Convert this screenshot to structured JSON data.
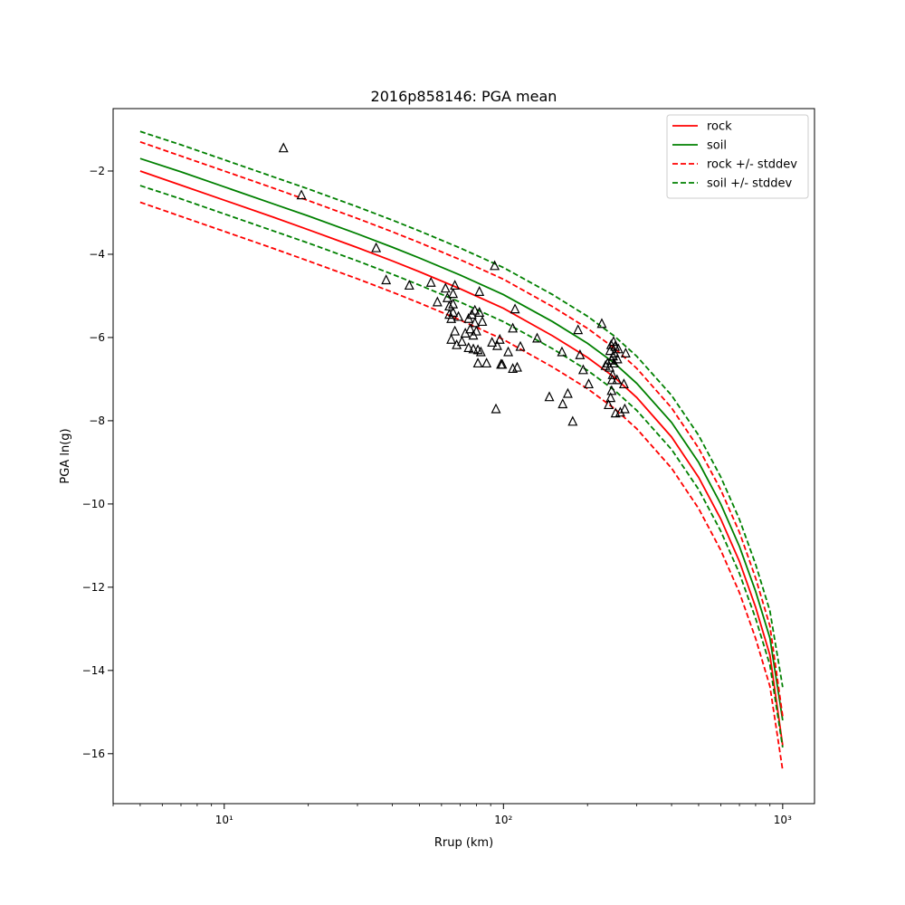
{
  "chart_data": {
    "type": "line",
    "title": "2016p858146: PGA mean",
    "xlabel": "Rrup (km)",
    "ylabel": "PGA ln(g)",
    "xscale": "log",
    "xlim": [
      4,
      1300
    ],
    "ylim": [
      -17.2,
      -0.5
    ],
    "xticks": [
      10,
      100,
      1000
    ],
    "xtick_labels": [
      "10¹",
      "10²",
      "10³"
    ],
    "yticks": [
      -2,
      -4,
      -6,
      -8,
      -10,
      -12,
      -14,
      -16
    ],
    "ytick_labels": [
      "−2",
      "−4",
      "−6",
      "−8",
      "−10",
      "−12",
      "−14",
      "−16"
    ],
    "grid": false,
    "legend_position": "top-right",
    "curve_x": [
      5,
      7,
      10,
      15,
      20,
      30,
      40,
      50,
      70,
      100,
      150,
      200,
      250,
      300,
      400,
      500,
      600,
      700,
      800,
      900,
      1000
    ],
    "series": [
      {
        "name": "rock",
        "color": "#ff0000",
        "style": "solid",
        "values": [
          -2.0,
          -2.34,
          -2.7,
          -3.11,
          -3.41,
          -3.84,
          -4.16,
          -4.42,
          -4.83,
          -5.3,
          -5.96,
          -6.48,
          -6.96,
          -7.44,
          -8.39,
          -9.36,
          -10.36,
          -11.38,
          -12.48,
          -13.63,
          -15.8
        ]
      },
      {
        "name": "soil",
        "color": "#008000",
        "style": "solid",
        "values": [
          -1.7,
          -2.02,
          -2.38,
          -2.79,
          -3.08,
          -3.51,
          -3.83,
          -4.09,
          -4.5,
          -4.97,
          -5.62,
          -6.14,
          -6.62,
          -7.1,
          -8.04,
          -9.0,
          -10.0,
          -11.02,
          -12.1,
          -13.22,
          -15.2
        ]
      },
      {
        "name": "rock +/- stddev",
        "color": "#ff0000",
        "style": "dashed",
        "band_of": "rock",
        "upper": [
          -1.3,
          -1.64,
          -2.0,
          -2.41,
          -2.71,
          -3.14,
          -3.46,
          -3.72,
          -4.13,
          -4.6,
          -5.26,
          -5.78,
          -6.26,
          -6.74,
          -7.69,
          -8.66,
          -9.66,
          -10.68,
          -11.78,
          -12.93,
          -15.1
        ],
        "lower": [
          -2.75,
          -3.09,
          -3.45,
          -3.86,
          -4.16,
          -4.59,
          -4.91,
          -5.17,
          -5.58,
          -6.05,
          -6.71,
          -7.23,
          -7.71,
          -8.19,
          -9.14,
          -10.11,
          -11.11,
          -12.13,
          -13.23,
          -14.38,
          -16.4
        ]
      },
      {
        "name": "soil +/- stddev",
        "color": "#008000",
        "style": "dashed",
        "band_of": "soil",
        "upper": [
          -1.05,
          -1.37,
          -1.73,
          -2.14,
          -2.43,
          -2.86,
          -3.18,
          -3.44,
          -3.85,
          -4.32,
          -4.97,
          -5.49,
          -5.97,
          -6.45,
          -7.39,
          -8.35,
          -9.35,
          -10.37,
          -11.45,
          -12.57,
          -14.4
        ],
        "lower": [
          -2.35,
          -2.67,
          -3.03,
          -3.44,
          -3.73,
          -4.16,
          -4.48,
          -4.74,
          -5.15,
          -5.62,
          -6.27,
          -6.79,
          -7.27,
          -7.75,
          -8.69,
          -9.65,
          -10.65,
          -11.67,
          -12.75,
          -13.87,
          -15.85
        ]
      }
    ],
    "observations": {
      "marker": "open-triangle",
      "color": "#000000",
      "points": [
        [
          16.3,
          -1.45
        ],
        [
          18.9,
          -2.58
        ],
        [
          35.0,
          -3.85
        ],
        [
          38.0,
          -4.62
        ],
        [
          46.0,
          -4.75
        ],
        [
          55.0,
          -4.68
        ],
        [
          58.0,
          -5.15
        ],
        [
          62.0,
          -4.82
        ],
        [
          63.0,
          -5.05
        ],
        [
          64.0,
          -5.25
        ],
        [
          64.0,
          -5.45
        ],
        [
          65.0,
          -5.55
        ],
        [
          65.0,
          -6.05
        ],
        [
          66.0,
          -4.95
        ],
        [
          66.0,
          -5.2
        ],
        [
          66.0,
          -5.4
        ],
        [
          67.0,
          -5.85
        ],
        [
          67.0,
          -4.75
        ],
        [
          68.0,
          -6.18
        ],
        [
          69.0,
          -5.5
        ],
        [
          71.0,
          -6.1
        ],
        [
          73.0,
          -5.9
        ],
        [
          75.0,
          -6.25
        ],
        [
          75.0,
          -5.55
        ],
        [
          76.0,
          -5.8
        ],
        [
          77.0,
          -5.45
        ],
        [
          78.0,
          -5.95
        ],
        [
          78.0,
          -6.28
        ],
        [
          79.0,
          -5.35
        ],
        [
          79.0,
          -5.65
        ],
        [
          80.0,
          -5.85
        ],
        [
          81.0,
          -6.3
        ],
        [
          81.0,
          -6.62
        ],
        [
          82.0,
          -4.9
        ],
        [
          82.0,
          -5.4
        ],
        [
          83.0,
          -6.35
        ],
        [
          84.0,
          -5.62
        ],
        [
          87.0,
          -6.62
        ],
        [
          91.0,
          -6.12
        ],
        [
          93.0,
          -4.28
        ],
        [
          94.0,
          -7.72
        ],
        [
          95.0,
          -6.2
        ],
        [
          97.0,
          -6.05
        ],
        [
          98.0,
          -6.65
        ],
        [
          99.0,
          -6.65
        ],
        [
          104.0,
          -6.35
        ],
        [
          108.0,
          -6.75
        ],
        [
          108.0,
          -5.78
        ],
        [
          110.0,
          -5.32
        ],
        [
          112.0,
          -6.72
        ],
        [
          115.0,
          -6.22
        ],
        [
          132.0,
          -6.02
        ],
        [
          146.0,
          -7.43
        ],
        [
          162.0,
          -6.35
        ],
        [
          163.0,
          -7.6
        ],
        [
          170.0,
          -7.35
        ],
        [
          177.0,
          -8.02
        ],
        [
          185.0,
          -5.82
        ],
        [
          188.0,
          -6.42
        ],
        [
          193.0,
          -6.78
        ],
        [
          202.0,
          -7.12
        ],
        [
          225.0,
          -5.67
        ],
        [
          232.0,
          -6.68
        ],
        [
          236.0,
          -6.62
        ],
        [
          238.0,
          -7.62
        ],
        [
          240.0,
          -6.72
        ],
        [
          241.0,
          -6.32
        ],
        [
          242.0,
          -7.45
        ],
        [
          243.0,
          -6.18
        ],
        [
          244.0,
          -7.28
        ],
        [
          244.0,
          -6.55
        ],
        [
          245.0,
          -7.02
        ],
        [
          246.0,
          -6.9
        ],
        [
          247.0,
          -6.45
        ],
        [
          248.0,
          -6.1
        ],
        [
          249.0,
          -6.62
        ],
        [
          250.0,
          -6.38
        ],
        [
          251.0,
          -6.22
        ],
        [
          252.0,
          -7.82
        ],
        [
          255.0,
          -7.02
        ],
        [
          256.0,
          -6.52
        ],
        [
          258.0,
          -6.28
        ],
        [
          262.0,
          -7.8
        ],
        [
          270.0,
          -7.12
        ],
        [
          272.0,
          -7.72
        ],
        [
          274.0,
          -6.38
        ]
      ]
    }
  }
}
